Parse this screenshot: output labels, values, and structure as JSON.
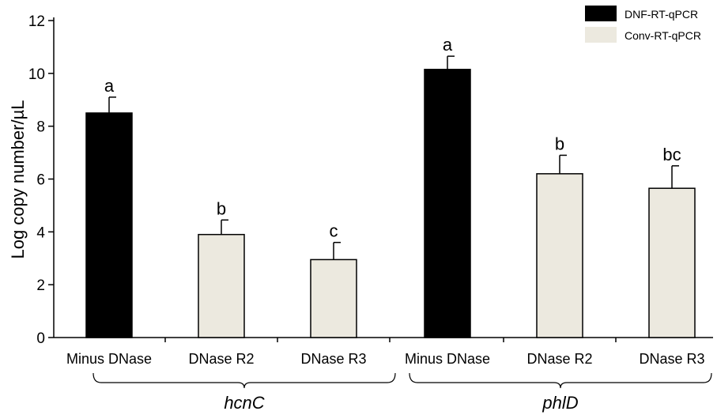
{
  "chart_data": {
    "type": "bar",
    "ylabel": "Log copy number/µL",
    "ylim": [
      0,
      12
    ],
    "yticks": [
      0,
      2,
      4,
      6,
      8,
      10,
      12
    ],
    "legend_position": "top-right",
    "legend": [
      {
        "name": "DNF-RT-qPCR",
        "color": "#000000"
      },
      {
        "name": "Conv-RT-qPCR",
        "color": "#ece9df"
      }
    ],
    "categories": [
      "Minus DNase",
      "DNase R2",
      "DNase R3",
      "Minus DNase",
      "DNase R2",
      "DNase R3"
    ],
    "groups": [
      {
        "name": "hcnC",
        "indices": [
          0,
          1,
          2
        ]
      },
      {
        "name": "phlD",
        "indices": [
          3,
          4,
          5
        ]
      }
    ],
    "bars": [
      {
        "value": 8.5,
        "error": 0.6,
        "letter": "a",
        "series": 0
      },
      {
        "value": 3.9,
        "error": 0.55,
        "letter": "b",
        "series": 1
      },
      {
        "value": 2.95,
        "error": 0.65,
        "letter": "c",
        "series": 1
      },
      {
        "value": 10.15,
        "error": 0.5,
        "letter": "a",
        "series": 0
      },
      {
        "value": 6.2,
        "error": 0.7,
        "letter": "b",
        "series": 1
      },
      {
        "value": 5.65,
        "error": 0.85,
        "letter": "bc",
        "series": 1
      }
    ]
  }
}
